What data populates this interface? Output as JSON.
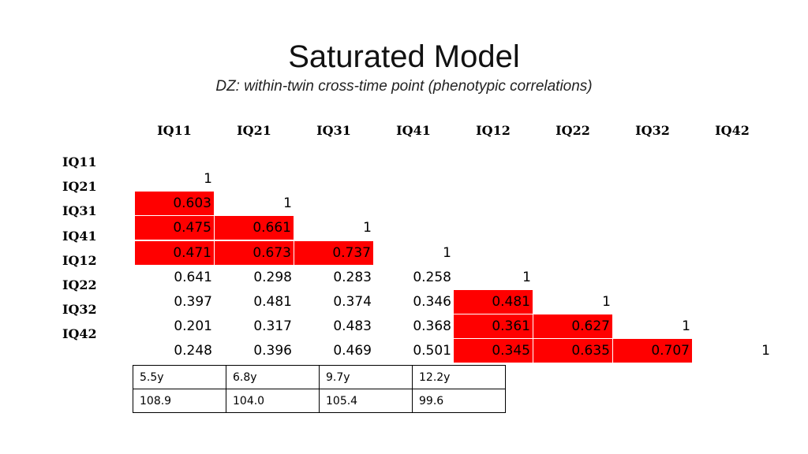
{
  "title": "Saturated Model",
  "subtitle": "DZ: within-twin cross-time point (phenotypic correlations)",
  "columns": [
    "IQ11",
    "IQ21",
    "IQ31",
    "IQ41",
    "IQ12",
    "IQ22",
    "IQ32",
    "IQ42"
  ],
  "rows": [
    {
      "label": "IQ11",
      "values": [
        "1"
      ],
      "highlight": [
        false
      ]
    },
    {
      "label": "IQ21",
      "values": [
        "0.603",
        "1"
      ],
      "highlight": [
        true,
        false
      ]
    },
    {
      "label": "IQ31",
      "values": [
        "0.475",
        "0.661",
        "1"
      ],
      "highlight": [
        true,
        true,
        false
      ]
    },
    {
      "label": "IQ41",
      "values": [
        "0.471",
        "0.673",
        "0.737",
        "1"
      ],
      "highlight": [
        true,
        true,
        true,
        false
      ]
    },
    {
      "label": "IQ12",
      "values": [
        "0.641",
        "0.298",
        "0.283",
        "0.258",
        "1"
      ],
      "highlight": [
        false,
        false,
        false,
        false,
        false
      ]
    },
    {
      "label": "IQ22",
      "values": [
        "0.397",
        "0.481",
        "0.374",
        "0.346",
        "0.481",
        "1"
      ],
      "highlight": [
        false,
        false,
        false,
        false,
        true,
        false
      ]
    },
    {
      "label": "IQ32",
      "values": [
        "0.201",
        "0.317",
        "0.483",
        "0.368",
        "0.361",
        "0.627",
        "1"
      ],
      "highlight": [
        false,
        false,
        false,
        false,
        true,
        true,
        false
      ]
    },
    {
      "label": "IQ42",
      "values": [
        "0.248",
        "0.396",
        "0.469",
        "0.501",
        "0.345",
        "0.635",
        "0.707",
        "1"
      ],
      "highlight": [
        false,
        false,
        false,
        false,
        true,
        true,
        true,
        false
      ]
    }
  ],
  "highlight_color": "#ff0000",
  "ages": {
    "row1": [
      "5.5y",
      "6.8y",
      "9.7y",
      "12.2y"
    ],
    "row2": [
      "108.9",
      "104.0",
      "105.4",
      "99.6"
    ]
  }
}
